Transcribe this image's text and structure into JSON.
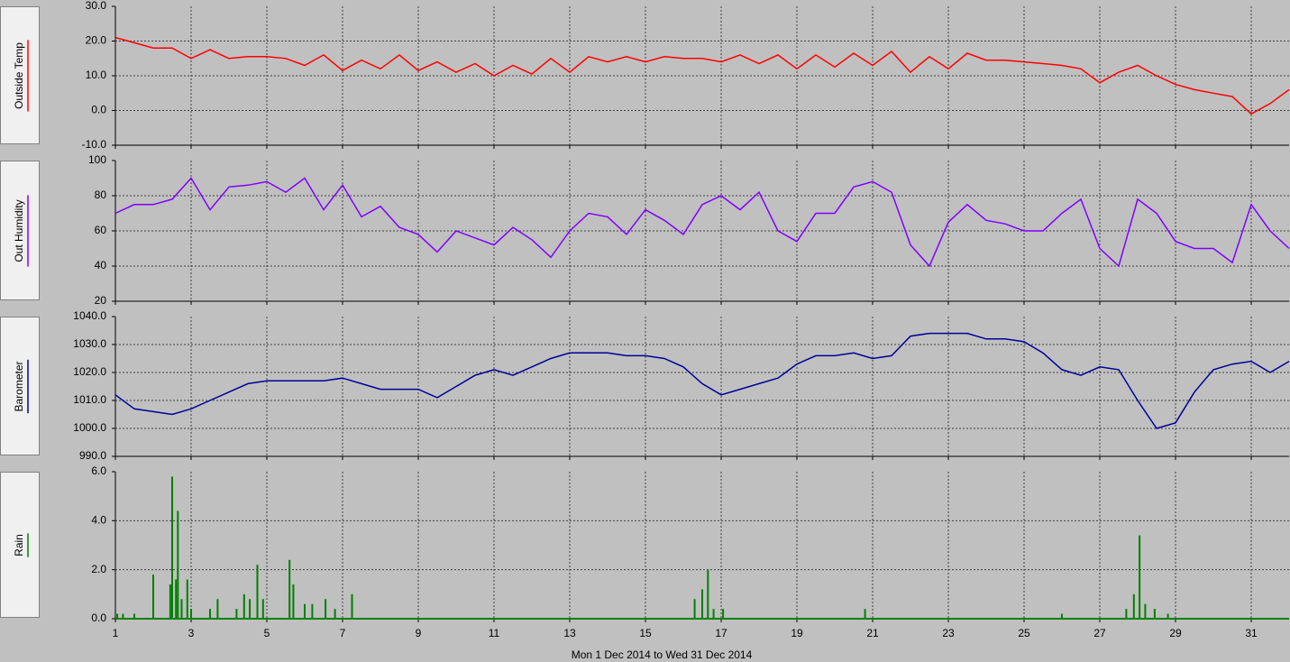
{
  "chart_data": [
    {
      "type": "line",
      "xlim": [
        1,
        32
      ],
      "xticks": [
        1,
        3,
        5,
        7,
        9,
        11,
        13,
        15,
        17,
        19,
        21,
        23,
        25,
        27,
        29,
        31
      ],
      "ylim": [
        -10,
        30
      ],
      "yticks": [
        {
          "value": 30,
          "label": "30.0"
        },
        {
          "value": 20,
          "label": "20.0"
        },
        {
          "value": 10,
          "label": "10.0"
        },
        {
          "value": 0,
          "label": "0.0"
        },
        {
          "value": -10,
          "label": "-10.0"
        }
      ],
      "grid": true,
      "x": [
        1,
        1.5,
        2,
        2.5,
        3,
        3.5,
        4,
        4.5,
        5,
        5.5,
        6,
        6.5,
        7,
        7.5,
        8,
        8.5,
        9,
        9.5,
        10,
        10.5,
        11,
        11.5,
        12,
        12.5,
        13,
        13.5,
        14,
        14.5,
        15,
        15.5,
        16,
        16.5,
        17,
        17.5,
        18,
        18.5,
        19,
        19.5,
        20,
        20.5,
        21,
        21.5,
        22,
        22.5,
        23,
        23.5,
        24,
        24.5,
        25,
        25.5,
        26,
        26.5,
        27,
        27.5,
        28,
        28.5,
        29,
        29.5,
        30,
        30.5,
        31,
        31.5,
        32
      ],
      "series": [
        {
          "name": "Outside Temp",
          "color": "#ff0000",
          "values": [
            21,
            19.5,
            18,
            18,
            15,
            17.5,
            15,
            15.5,
            15.5,
            15,
            13,
            16,
            11.5,
            14.5,
            12,
            16,
            11.5,
            14,
            11,
            13.5,
            10,
            13,
            10.5,
            15,
            11,
            15.5,
            14,
            15.5,
            14,
            15.5,
            15,
            15,
            14,
            16,
            13.5,
            16,
            12,
            16,
            12.5,
            16.5,
            13,
            17,
            11,
            15.5,
            12,
            16.5,
            14.5,
            14.5,
            14,
            13.5,
            13,
            12,
            8,
            11,
            13,
            10,
            7.5,
            6,
            5,
            4,
            -1,
            2,
            6
          ]
        }
      ]
    },
    {
      "type": "line",
      "xlim": [
        1,
        32
      ],
      "xticks": [
        1,
        3,
        5,
        7,
        9,
        11,
        13,
        15,
        17,
        19,
        21,
        23,
        25,
        27,
        29,
        31
      ],
      "ylim": [
        20,
        100
      ],
      "yticks": [
        100,
        80,
        60,
        40,
        20
      ],
      "grid": true,
      "x": [
        1,
        1.5,
        2,
        2.5,
        3,
        3.5,
        4,
        4.5,
        5,
        5.5,
        6,
        6.5,
        7,
        7.5,
        8,
        8.5,
        9,
        9.5,
        10,
        10.5,
        11,
        11.5,
        12,
        12.5,
        13,
        13.5,
        14,
        14.5,
        15,
        15.5,
        16,
        16.5,
        17,
        17.5,
        18,
        18.5,
        19,
        19.5,
        20,
        20.5,
        21,
        21.5,
        22,
        22.5,
        23,
        23.5,
        24,
        24.5,
        25,
        25.5,
        26,
        26.5,
        27,
        27.5,
        28,
        28.5,
        29,
        29.5,
        30,
        30.5,
        31,
        31.5,
        32
      ],
      "series": [
        {
          "name": "Out Humidity",
          "color": "#8000ff",
          "values": [
            70,
            75,
            75,
            78,
            90,
            72,
            85,
            86,
            88,
            82,
            90,
            72,
            86,
            68,
            74,
            62,
            58,
            48,
            60,
            56,
            52,
            62,
            55,
            45,
            60,
            70,
            68,
            58,
            72,
            66,
            58,
            75,
            80,
            72,
            82,
            60,
            54,
            70,
            70,
            85,
            88,
            82,
            52,
            40,
            65,
            75,
            66,
            64,
            60,
            60,
            70,
            78,
            50,
            40,
            78,
            70,
            54,
            50,
            50,
            42,
            75,
            60,
            50
          ]
        }
      ]
    },
    {
      "type": "line",
      "xlim": [
        1,
        32
      ],
      "xticks": [
        1,
        3,
        5,
        7,
        9,
        11,
        13,
        15,
        17,
        19,
        21,
        23,
        25,
        27,
        29,
        31
      ],
      "ylim": [
        990,
        1040
      ],
      "yticks": [
        {
          "value": 1040,
          "label": "1040.0"
        },
        {
          "value": 1030,
          "label": "1030.0"
        },
        {
          "value": 1020,
          "label": "1020.0"
        },
        {
          "value": 1010,
          "label": "1010.0"
        },
        {
          "value": 1000,
          "label": "1000.0"
        },
        {
          "value": 990,
          "label": "990.0"
        }
      ],
      "grid": true,
      "x": [
        1,
        1.5,
        2,
        2.5,
        3,
        3.5,
        4,
        4.5,
        5,
        5.5,
        6,
        6.5,
        7,
        7.5,
        8,
        8.5,
        9,
        9.5,
        10,
        10.5,
        11,
        11.5,
        12,
        12.5,
        13,
        13.5,
        14,
        14.5,
        15,
        15.5,
        16,
        16.5,
        17,
        17.5,
        18,
        18.5,
        19,
        19.5,
        20,
        20.5,
        21,
        21.5,
        22,
        22.5,
        23,
        23.5,
        24,
        24.5,
        25,
        25.5,
        26,
        26.5,
        27,
        27.5,
        28,
        28.5,
        29,
        29.5,
        30,
        30.5,
        31,
        31.5,
        32
      ],
      "series": [
        {
          "name": "Barometer",
          "color": "#000099",
          "values": [
            1012,
            1007,
            1006,
            1005,
            1007,
            1010,
            1013,
            1016,
            1017,
            1017,
            1017,
            1017,
            1018,
            1016,
            1014,
            1014,
            1014,
            1011,
            1015,
            1019,
            1021,
            1019,
            1022,
            1025,
            1027,
            1027,
            1027,
            1026,
            1026,
            1025,
            1022,
            1016,
            1012,
            1014,
            1016,
            1018,
            1023,
            1026,
            1026,
            1027,
            1025,
            1026,
            1033,
            1034,
            1034,
            1034,
            1032,
            1032,
            1031,
            1027,
            1021,
            1019,
            1022,
            1021,
            1010,
            1000,
            1002,
            1013,
            1021,
            1023,
            1024,
            1020,
            1024
          ]
        }
      ]
    },
    {
      "type": "bar",
      "xlim": [
        1,
        32
      ],
      "xticks": [
        1,
        3,
        5,
        7,
        9,
        11,
        13,
        15,
        17,
        19,
        21,
        23,
        25,
        27,
        29,
        31
      ],
      "ylim": [
        0,
        6
      ],
      "yticks": [
        {
          "value": 6,
          "label": "6.0"
        },
        {
          "value": 4,
          "label": "4.0"
        },
        {
          "value": 2,
          "label": "2.0"
        },
        {
          "value": 0,
          "label": "0.0"
        }
      ],
      "grid": true,
      "xlabel": "Mon 1 Dec 2014  to  Wed 31 Dec 2014",
      "x": [
        1.05,
        1.2,
        1.5,
        2,
        2.45,
        2.5,
        2.6,
        2.65,
        2.75,
        2.9,
        3,
        3.5,
        3.7,
        4.2,
        4.4,
        4.55,
        4.75,
        4.9,
        5.6,
        5.7,
        6,
        6.2,
        6.55,
        6.8,
        7.25,
        16.3,
        16.5,
        16.65,
        16.8,
        17.05,
        20.8,
        26,
        27.7,
        27.9,
        28.05,
        28.2,
        28.45,
        28.8
      ],
      "series": [
        {
          "name": "Rain",
          "color": "#008000",
          "values": [
            0.2,
            0.2,
            0.2,
            1.8,
            1.4,
            5.8,
            1.6,
            4.4,
            0.8,
            1.6,
            0.4,
            0.4,
            0.8,
            0.4,
            1,
            0.8,
            2.2,
            0.8,
            2.4,
            1.4,
            0.6,
            0.6,
            0.8,
            0.4,
            1,
            0.8,
            1.2,
            2,
            0.4,
            0.4,
            0.4,
            0.2,
            0.4,
            1,
            3.4,
            0.6,
            0.4,
            0.2
          ]
        }
      ]
    }
  ]
}
